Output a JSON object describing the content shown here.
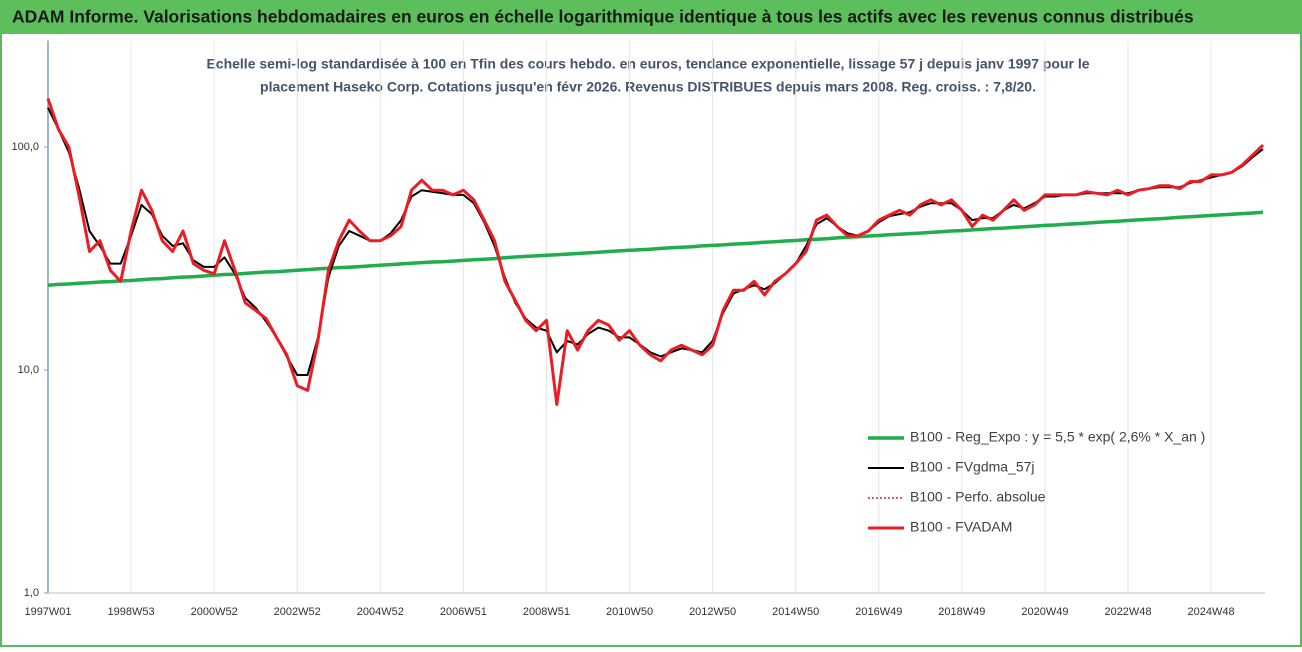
{
  "chart_data": {
    "type": "line",
    "title": "ADAM Informe. Valorisations hebdomadaires en euros en échelle logarithmique identique à tous les actifs avec les revenus connus distribués",
    "subtitle": [
      "Echelle semi-log standardisée à 100 en Tfin des cours hebdo. en euros, tendance exponentielle, lissage 57 j depuis janv 1997 pour le",
      "placement Haseko Corp. Cotations jusqu'en févr 2026. Revenus DISTRIBUES depuis mars 2008. Reg. croiss. : 7,8/20."
    ],
    "log_y": true,
    "grid": true,
    "legend": "right",
    "ylim": [
      1,
      300
    ],
    "yticks": [
      {
        "value": 1,
        "label": "1,0"
      },
      {
        "value": 10,
        "label": "10,0"
      },
      {
        "value": 100,
        "label": "100,0"
      }
    ],
    "categories": [
      "1997W01",
      null,
      null,
      null,
      null,
      null,
      null,
      null,
      "1998W53",
      null,
      null,
      null,
      null,
      null,
      null,
      null,
      "2000W52",
      null,
      null,
      null,
      null,
      null,
      null,
      null,
      "2002W52",
      null,
      null,
      null,
      null,
      null,
      null,
      null,
      "2004W52",
      null,
      null,
      null,
      null,
      null,
      null,
      null,
      "2006W51",
      null,
      null,
      null,
      null,
      null,
      null,
      null,
      "2008W51",
      null,
      null,
      null,
      null,
      null,
      null,
      null,
      "2010W50",
      null,
      null,
      null,
      null,
      null,
      null,
      null,
      "2012W50",
      null,
      null,
      null,
      null,
      null,
      null,
      null,
      "2014W50",
      null,
      null,
      null,
      null,
      null,
      null,
      null,
      "2016W49",
      null,
      null,
      null,
      null,
      null,
      null,
      null,
      "2018W49",
      null,
      null,
      null,
      null,
      null,
      null,
      null,
      "2020W49",
      null,
      null,
      null,
      null,
      null,
      null,
      null,
      "2022W48",
      null,
      null,
      null,
      null,
      null,
      null,
      null,
      "2024W48",
      null,
      null,
      null,
      null,
      null
    ],
    "series": [
      {
        "name": "B100 - Reg_Expo : y = 5,5 * exp( 2,6% *  X_an )",
        "color": "#1fae4b",
        "dash": "solid",
        "values": [
          24.0,
          24.2,
          24.3,
          24.5,
          24.6,
          24.8,
          24.9,
          25.1,
          25.2,
          25.4,
          25.6,
          25.7,
          25.9,
          26.1,
          26.2,
          26.4,
          26.6,
          26.8,
          26.9,
          27.1,
          27.3,
          27.5,
          27.6,
          27.8,
          28.0,
          28.2,
          28.4,
          28.6,
          28.8,
          28.9,
          29.1,
          29.3,
          29.5,
          29.7,
          29.9,
          30.1,
          30.3,
          30.5,
          30.6,
          30.8,
          31.0,
          31.2,
          31.4,
          31.6,
          31.9,
          32.1,
          32.3,
          32.5,
          32.7,
          32.9,
          33.1,
          33.3,
          33.5,
          33.7,
          34.0,
          34.2,
          34.4,
          34.6,
          34.8,
          35.1,
          35.3,
          35.5,
          35.7,
          36.0,
          36.2,
          36.4,
          36.7,
          36.9,
          37.1,
          37.4,
          37.6,
          37.9,
          38.1,
          38.4,
          38.6,
          38.8,
          39.1,
          39.4,
          39.6,
          39.9,
          40.1,
          40.4,
          40.6,
          40.9,
          41.1,
          41.4,
          41.7,
          42.0,
          42.2,
          42.5,
          42.8,
          43.1,
          43.3,
          43.6,
          43.9,
          44.2,
          44.5,
          44.7,
          45.0,
          45.3,
          45.6,
          45.9,
          46.2,
          46.5,
          46.8,
          47.1,
          47.4,
          47.7,
          48.0,
          48.4,
          48.7,
          49.0,
          49.3,
          49.6,
          49.9,
          50.3,
          50.6,
          51.0
        ]
      },
      {
        "name": "B100 - FVgdma_57j",
        "color": "#000000",
        "dash": "solid",
        "values": [
          150,
          120,
          95,
          65,
          42,
          36,
          30,
          30,
          40,
          55,
          50,
          40,
          36,
          37,
          31,
          29,
          29,
          32,
          27,
          21,
          19,
          16.5,
          14,
          11.5,
          9.5,
          9.5,
          14,
          26,
          36,
          42,
          40,
          38,
          38,
          41,
          47,
          60,
          64,
          63,
          62,
          61,
          61,
          56,
          46,
          36,
          26,
          20,
          17,
          15.5,
          15,
          12,
          13.5,
          13,
          14.5,
          15.5,
          15,
          14,
          14,
          13,
          12,
          11.5,
          12,
          12.5,
          12.3,
          12,
          13.5,
          18,
          22,
          23,
          24,
          23,
          24.5,
          27,
          30,
          36,
          45,
          48,
          44,
          41,
          40,
          42,
          46,
          49,
          50,
          51,
          54,
          56,
          56,
          56,
          52,
          47,
          48,
          48,
          52,
          55,
          53,
          56,
          60,
          60,
          61,
          61,
          62,
          62,
          62,
          62,
          62,
          64,
          65,
          66,
          66,
          66,
          69,
          71,
          73,
          75,
          77,
          82,
          90,
          98
        ]
      },
      {
        "name": "B100 - Perfo. absolue",
        "color": "#c00000",
        "dash": "dotted",
        "values": [
          165,
          120,
          100,
          60,
          34,
          38,
          28,
          25,
          42,
          64,
          52,
          38,
          34,
          42,
          30,
          28,
          27,
          38,
          28,
          20,
          18.5,
          17,
          14,
          11.7,
          8.5,
          8.1,
          13.6,
          28,
          38,
          47,
          42,
          38,
          38,
          40,
          44,
          64,
          71,
          64,
          64,
          61,
          64,
          58,
          47,
          38,
          25,
          20.5,
          16.7,
          15,
          16.7,
          7,
          15,
          12.3,
          15,
          16.7,
          15.9,
          13.6,
          15,
          12.9,
          11.7,
          11,
          12.3,
          12.9,
          12.3,
          11.7,
          12.9,
          18.5,
          22.8,
          22.8,
          25,
          21.7,
          25,
          27,
          30,
          34,
          47,
          49.5,
          44,
          40,
          40,
          42,
          47,
          49.5,
          52,
          49.5,
          55,
          58,
          55,
          58,
          52,
          44,
          49.5,
          47,
          52,
          58,
          52,
          55,
          61,
          61,
          61,
          61,
          63,
          62,
          61,
          64,
          61,
          64,
          65,
          67,
          67,
          65,
          70,
          70,
          75,
          75,
          77,
          83,
          92,
          102
        ]
      },
      {
        "name": "B100 - FVADAM",
        "color": "#ec1c24",
        "dash": "solid",
        "values": [
          165,
          120,
          100,
          60,
          34,
          38,
          28,
          25,
          42,
          64,
          52,
          38,
          34,
          42,
          30,
          28,
          27,
          38,
          28,
          20,
          18.5,
          17,
          14,
          11.7,
          8.5,
          8.1,
          13.6,
          28,
          38,
          47,
          42,
          38,
          38,
          40,
          44,
          64,
          71,
          64,
          64,
          61,
          64,
          58,
          47,
          38,
          25,
          20.5,
          16.7,
          15,
          16.7,
          7,
          15,
          12.3,
          15,
          16.7,
          15.9,
          13.6,
          15,
          12.9,
          11.7,
          11,
          12.3,
          12.9,
          12.3,
          11.7,
          12.9,
          18.5,
          22.8,
          22.8,
          25,
          21.7,
          25,
          27,
          30,
          34,
          47,
          49.5,
          44,
          40,
          40,
          42,
          47,
          49.5,
          52,
          49.5,
          55,
          58,
          55,
          58,
          52,
          44,
          49.5,
          47,
          52,
          58,
          52,
          55,
          61,
          61,
          61,
          61,
          63,
          62,
          61,
          64,
          61,
          64,
          65,
          67,
          67,
          65,
          70,
          70,
          75,
          75,
          77,
          83,
          92,
          102
        ]
      }
    ]
  }
}
